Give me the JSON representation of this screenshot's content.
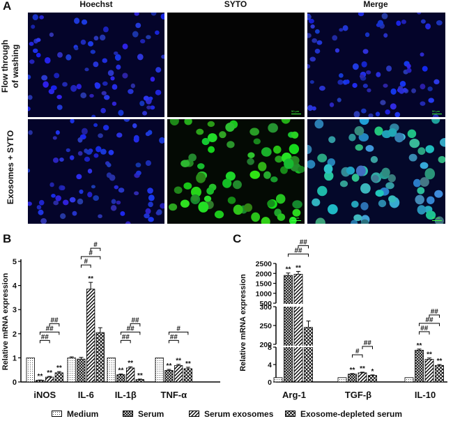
{
  "panel_a": {
    "letter": "A",
    "columns": [
      "Hoechst",
      "SYTO",
      "Merge"
    ],
    "rows": [
      "Flow through of washing",
      "Exosomes + SYTO"
    ],
    "row_line1": [
      "Flow through",
      "Exosomes + SYTO"
    ],
    "row_line2": [
      "of washing",
      ""
    ],
    "scale_label": "50 μm"
  },
  "chart_data": [
    {
      "panel": "B",
      "type": "bar",
      "ylabel": "Relative mRNA expression",
      "ylim": [
        0,
        5
      ],
      "yticks": [
        0,
        1,
        2,
        3,
        4,
        5
      ],
      "categories": [
        "iNOS",
        "IL-6",
        "IL-1β",
        "TNF-α"
      ],
      "series": [
        {
          "name": "Medium",
          "values": [
            1.0,
            1.0,
            1.0,
            1.0
          ],
          "errors": [
            0,
            0.04,
            0,
            0
          ],
          "sig": [
            "",
            "",
            "",
            ""
          ]
        },
        {
          "name": "Serum",
          "values": [
            0.07,
            0.95,
            0.3,
            0.48
          ],
          "errors": [
            0.01,
            0.07,
            0.03,
            0.04
          ],
          "sig": [
            "**",
            "",
            "**",
            "**"
          ]
        },
        {
          "name": "Serum exosomes",
          "values": [
            0.2,
            3.85,
            0.58,
            0.68
          ],
          "errors": [
            0.03,
            0.28,
            0.05,
            0.05
          ],
          "sig": [
            "**",
            "**",
            "**",
            "**"
          ]
        },
        {
          "name": "Exosome-depleted serum",
          "values": [
            0.38,
            2.05,
            0.1,
            0.55
          ],
          "errors": [
            0.05,
            0.2,
            0.02,
            0.06
          ],
          "sig": [
            "**",
            "",
            "**",
            "**"
          ]
        }
      ],
      "brackets": [
        {
          "cat": 0,
          "from": 1,
          "to": 2,
          "label": "##"
        },
        {
          "cat": 0,
          "from": 1,
          "to": 3,
          "label": "##"
        },
        {
          "cat": 0,
          "from": 2,
          "to": 3,
          "label": "##"
        },
        {
          "cat": 1,
          "from": 1,
          "to": 2,
          "label": "#"
        },
        {
          "cat": 1,
          "from": 1,
          "to": 3,
          "label": "#"
        },
        {
          "cat": 1,
          "from": 2,
          "to": 3,
          "label": "#"
        },
        {
          "cat": 2,
          "from": 1,
          "to": 2,
          "label": "##"
        },
        {
          "cat": 2,
          "from": 1,
          "to": 3,
          "label": "##"
        },
        {
          "cat": 2,
          "from": 2,
          "to": 3,
          "label": "##"
        },
        {
          "cat": 3,
          "from": 1,
          "to": 2,
          "label": "##"
        },
        {
          "cat": 3,
          "from": 1,
          "to": 3,
          "label": "#"
        }
      ]
    },
    {
      "panel": "C",
      "type": "bar",
      "ylabel": "Relative mRNA expression",
      "axis_breaks": true,
      "segments": [
        {
          "range": [
            0,
            8
          ],
          "ticks": [
            0,
            4,
            8
          ]
        },
        {
          "range": [
            200,
            300
          ],
          "ticks": [
            200,
            250,
            300
          ]
        },
        {
          "range": [
            500,
            2500
          ],
          "ticks": [
            500,
            1000,
            1500,
            2000,
            2500
          ]
        }
      ],
      "categories": [
        "Arg-1",
        "TGF-β",
        "IL-10"
      ],
      "series": [
        {
          "name": "Medium",
          "values": [
            1.0,
            1.0,
            1.0
          ],
          "errors": [
            0,
            0,
            0
          ],
          "sig": [
            "",
            "",
            ""
          ]
        },
        {
          "name": "Serum",
          "values": [
            1900,
            1.8,
            7.3
          ],
          "errors": [
            120,
            0.12,
            0.25
          ],
          "sig": [
            "**",
            "**",
            "**"
          ]
        },
        {
          "name": "Serum exosomes",
          "values": [
            1960,
            2.1,
            5.2
          ],
          "errors": [
            140,
            0.15,
            0.3
          ],
          "sig": [
            "**",
            "**",
            "**"
          ]
        },
        {
          "name": "Exosome-depleted serum",
          "values": [
            245,
            1.5,
            3.8
          ],
          "errors": [
            17,
            0.12,
            0.2
          ],
          "sig": [
            "",
            "*",
            "**"
          ]
        }
      ],
      "brackets": [
        {
          "cat": 0,
          "from": 1,
          "to": 3,
          "label": "##"
        },
        {
          "cat": 0,
          "from": 2,
          "to": 3,
          "label": "##"
        },
        {
          "cat": 1,
          "from": 1,
          "to": 2,
          "label": "#"
        },
        {
          "cat": 1,
          "from": 2,
          "to": 3,
          "label": "##"
        },
        {
          "cat": 2,
          "from": 1,
          "to": 2,
          "label": "##"
        },
        {
          "cat": 2,
          "from": 1,
          "to": 3,
          "label": "##"
        },
        {
          "cat": 2,
          "from": 2,
          "to": 3,
          "label": "##"
        }
      ]
    }
  ],
  "legend": [
    "Medium",
    "Serum",
    "Serum exosomes",
    "Exosome-depleted serum"
  ]
}
